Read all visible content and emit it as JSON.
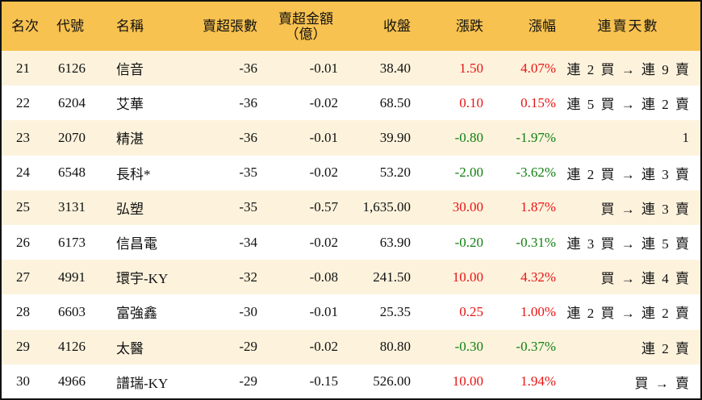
{
  "headers": [
    "名次",
    "代號",
    "名稱",
    "賣超張數",
    "賣超金額",
    "（億）",
    "收盤",
    "漲跌",
    "漲幅",
    "連賣天數"
  ],
  "colors": {
    "header_bg": "#F8C250",
    "odd_row_bg": "#FDF3DD",
    "up": "#e81414",
    "down": "#128012"
  },
  "rows": [
    {
      "rank": "21",
      "code": "6126",
      "name": "信音",
      "lots": "-36",
      "amount": "-0.01",
      "close": "38.40",
      "change": "1.50",
      "pct": "4.07%",
      "dir": "up",
      "streak": "連 2 買 → 連 9 賣"
    },
    {
      "rank": "22",
      "code": "6204",
      "name": "艾華",
      "lots": "-36",
      "amount": "-0.02",
      "close": "68.50",
      "change": "0.10",
      "pct": "0.15%",
      "dir": "up",
      "streak": "連 5 買 → 連 2 賣"
    },
    {
      "rank": "23",
      "code": "2070",
      "name": "精湛",
      "lots": "-36",
      "amount": "-0.01",
      "close": "39.90",
      "change": "-0.80",
      "pct": "-1.97%",
      "dir": "down",
      "streak": "1"
    },
    {
      "rank": "24",
      "code": "6548",
      "name": "長科*",
      "lots": "-35",
      "amount": "-0.02",
      "close": "53.20",
      "change": "-2.00",
      "pct": "-3.62%",
      "dir": "down",
      "streak": "連 2 買 → 連 3 賣"
    },
    {
      "rank": "25",
      "code": "3131",
      "name": "弘塑",
      "lots": "-35",
      "amount": "-0.57",
      "close": "1,635.00",
      "change": "30.00",
      "pct": "1.87%",
      "dir": "up",
      "streak": "買 → 連 3 賣"
    },
    {
      "rank": "26",
      "code": "6173",
      "name": "信昌電",
      "lots": "-34",
      "amount": "-0.02",
      "close": "63.90",
      "change": "-0.20",
      "pct": "-0.31%",
      "dir": "down",
      "streak": "連 3 買 → 連 5 賣"
    },
    {
      "rank": "27",
      "code": "4991",
      "name": "環宇-KY",
      "lots": "-32",
      "amount": "-0.08",
      "close": "241.50",
      "change": "10.00",
      "pct": "4.32%",
      "dir": "up",
      "streak": "買 → 連 4 賣"
    },
    {
      "rank": "28",
      "code": "6603",
      "name": "富強鑫",
      "lots": "-30",
      "amount": "-0.01",
      "close": "25.35",
      "change": "0.25",
      "pct": "1.00%",
      "dir": "up",
      "streak": "連 2 買 → 連 2 賣"
    },
    {
      "rank": "29",
      "code": "4126",
      "name": "太醫",
      "lots": "-29",
      "amount": "-0.02",
      "close": "80.80",
      "change": "-0.30",
      "pct": "-0.37%",
      "dir": "down",
      "streak": "連 2 賣"
    },
    {
      "rank": "30",
      "code": "4966",
      "name": "譜瑞-KY",
      "lots": "-29",
      "amount": "-0.15",
      "close": "526.00",
      "change": "10.00",
      "pct": "1.94%",
      "dir": "up",
      "streak": "買 → 賣"
    }
  ]
}
